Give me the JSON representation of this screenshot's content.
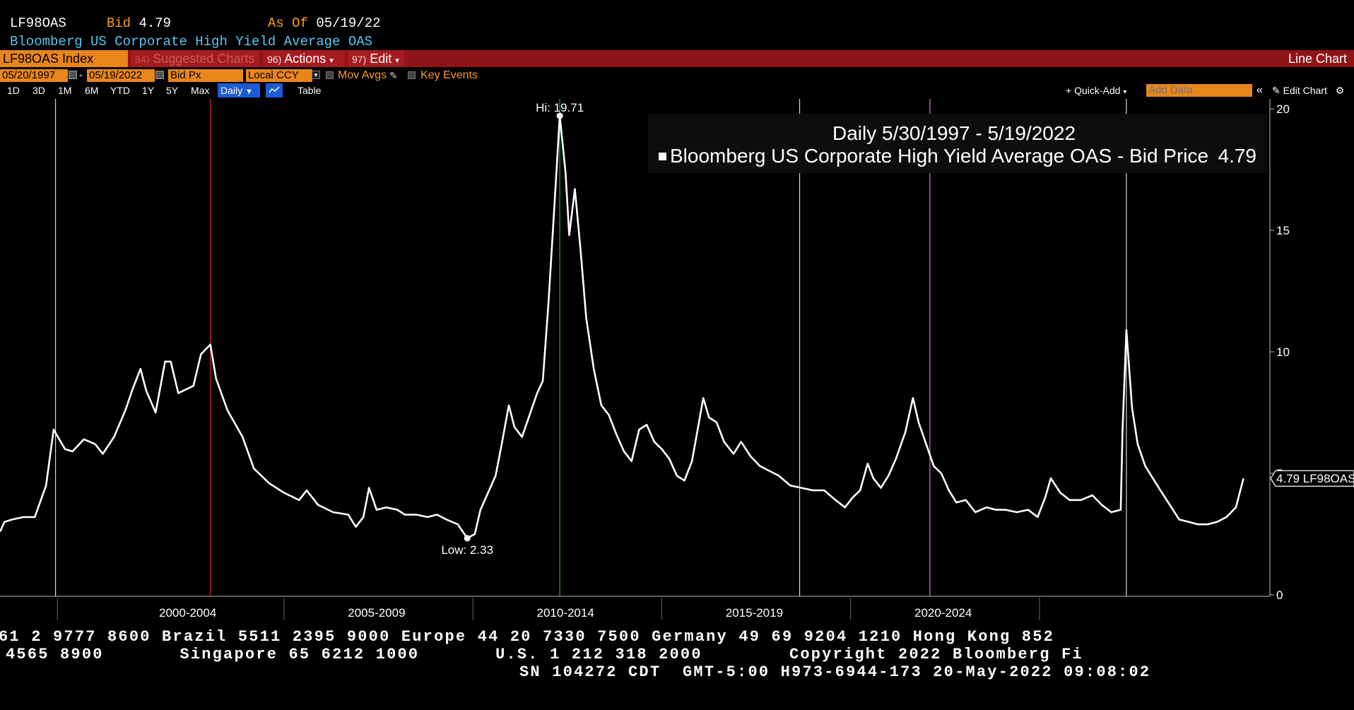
{
  "header": {
    "ticker": "LF98OAS",
    "bid_label": "Bid",
    "bid_value": "4.79",
    "asof_label": "As Of",
    "asof_value": "05/19/22",
    "description": "Bloomberg US Corporate High Yield Average OAS"
  },
  "toolbar": {
    "security": "LF98OAS Index",
    "suggested_num": "94)",
    "suggested": "Suggested Charts",
    "actions_num": "96)",
    "actions": "Actions",
    "edit_num": "97)",
    "edit": "Edit",
    "chart_type": "Line Chart"
  },
  "settings": {
    "start_date": "05/20/1997",
    "end_date": "05/19/2022",
    "field": "Bid Px",
    "currency": "Local CCY",
    "mov_avgs": "Mov Avgs",
    "key_events": "Key Events"
  },
  "ranges": {
    "items": [
      "1D",
      "3D",
      "1M",
      "6M",
      "YTD",
      "1Y",
      "5Y",
      "Max"
    ],
    "frequency": "Daily",
    "table": "Table",
    "quick_add": "+ Quick-Add",
    "add_data_placeholder": "Add Data",
    "collapse": "«",
    "edit_chart": "Edit Chart"
  },
  "colors": {
    "accent_orange": "#e8861b",
    "toolbar_red": "#8f1418",
    "selected_blue": "#1d5bd6",
    "line": "#ffffff",
    "marker_red": "#e02020",
    "marker_green": "#3aa04a",
    "marker_pink": "#c870c8"
  },
  "chart_data": {
    "type": "line",
    "legend_title": "Daily 5/30/1997 - 5/19/2022",
    "series": [
      {
        "name": "Bloomberg US Corporate High Yield Average OAS - Bid Price",
        "last_value": "4.79",
        "last_label": "4.79 LF98OAS",
        "points": [
          [
            1997.38,
            2.6
          ],
          [
            1997.5,
            3.0
          ],
          [
            1997.7,
            3.1
          ],
          [
            1998.0,
            3.2
          ],
          [
            1998.3,
            3.2
          ],
          [
            1998.6,
            4.5
          ],
          [
            1998.8,
            6.8
          ],
          [
            1998.95,
            6.4
          ],
          [
            1999.1,
            6.0
          ],
          [
            1999.3,
            5.9
          ],
          [
            1999.6,
            6.4
          ],
          [
            1999.9,
            6.2
          ],
          [
            2000.1,
            5.8
          ],
          [
            2000.4,
            6.5
          ],
          [
            2000.7,
            7.6
          ],
          [
            2000.9,
            8.5
          ],
          [
            2001.1,
            9.3
          ],
          [
            2001.25,
            8.4
          ],
          [
            2001.5,
            7.5
          ],
          [
            2001.75,
            9.6
          ],
          [
            2001.9,
            9.6
          ],
          [
            2002.1,
            8.3
          ],
          [
            2002.5,
            8.6
          ],
          [
            2002.7,
            9.9
          ],
          [
            2002.95,
            10.3
          ],
          [
            2003.1,
            8.9
          ],
          [
            2003.4,
            7.6
          ],
          [
            2003.8,
            6.5
          ],
          [
            2004.1,
            5.2
          ],
          [
            2004.5,
            4.6
          ],
          [
            2004.9,
            4.2
          ],
          [
            2005.3,
            3.9
          ],
          [
            2005.5,
            4.3
          ],
          [
            2005.8,
            3.7
          ],
          [
            2006.2,
            3.4
          ],
          [
            2006.6,
            3.3
          ],
          [
            2006.8,
            2.8
          ],
          [
            2007.0,
            3.2
          ],
          [
            2007.15,
            4.4
          ],
          [
            2007.35,
            3.5
          ],
          [
            2007.6,
            3.6
          ],
          [
            2007.9,
            3.5
          ],
          [
            2008.1,
            3.3
          ],
          [
            2008.4,
            3.3
          ],
          [
            2008.7,
            3.2
          ],
          [
            2008.95,
            3.3
          ],
          [
            2009.2,
            3.1
          ],
          [
            2009.5,
            2.9
          ],
          [
            2009.75,
            2.33
          ],
          [
            2009.95,
            2.5
          ],
          [
            2010.1,
            3.5
          ],
          [
            2010.3,
            4.2
          ],
          [
            2010.5,
            4.9
          ],
          [
            2010.65,
            6.1
          ],
          [
            2010.85,
            7.8
          ],
          [
            2011.0,
            6.9
          ],
          [
            2011.2,
            6.5
          ],
          [
            2011.4,
            7.4
          ],
          [
            2011.6,
            8.3
          ],
          [
            2011.75,
            8.8
          ],
          [
            2011.9,
            12.0
          ],
          [
            2012.05,
            15.8
          ],
          [
            2012.2,
            19.71
          ],
          [
            2012.35,
            17.4
          ],
          [
            2012.45,
            14.8
          ],
          [
            2012.6,
            16.7
          ],
          [
            2012.75,
            14.2
          ],
          [
            2012.9,
            11.4
          ],
          [
            2013.1,
            9.3
          ],
          [
            2013.3,
            7.8
          ],
          [
            2013.5,
            7.4
          ],
          [
            2013.7,
            6.6
          ],
          [
            2013.9,
            5.9
          ],
          [
            2014.1,
            5.5
          ],
          [
            2014.3,
            6.8
          ],
          [
            2014.5,
            7.0
          ],
          [
            2014.7,
            6.3
          ],
          [
            2014.9,
            6.0
          ],
          [
            2015.1,
            5.6
          ],
          [
            2015.3,
            4.9
          ],
          [
            2015.5,
            4.7
          ],
          [
            2015.7,
            5.5
          ],
          [
            2015.85,
            6.8
          ],
          [
            2016.0,
            8.1
          ],
          [
            2016.15,
            7.3
          ],
          [
            2016.35,
            7.1
          ],
          [
            2016.55,
            6.3
          ],
          [
            2016.8,
            5.8
          ],
          [
            2017.0,
            6.3
          ],
          [
            2017.25,
            5.7
          ],
          [
            2017.5,
            5.3
          ],
          [
            2017.75,
            5.1
          ],
          [
            2018.0,
            4.9
          ],
          [
            2018.3,
            4.5
          ],
          [
            2018.6,
            4.4
          ],
          [
            2018.9,
            4.3
          ],
          [
            2019.2,
            4.3
          ],
          [
            2019.5,
            3.9
          ],
          [
            2019.75,
            3.6
          ],
          [
            2019.95,
            4.0
          ],
          [
            2020.15,
            4.3
          ],
          [
            2020.35,
            5.4
          ],
          [
            2020.5,
            4.8
          ],
          [
            2020.7,
            4.4
          ],
          [
            2020.9,
            4.9
          ],
          [
            2021.1,
            5.6
          ],
          [
            2021.35,
            6.7
          ],
          [
            2021.55,
            8.1
          ],
          [
            2021.7,
            7.1
          ],
          [
            2021.9,
            6.2
          ],
          [
            2022.1,
            5.3
          ],
          [
            2022.3,
            5.0
          ],
          [
            2022.5,
            4.3
          ],
          [
            2022.7,
            3.8
          ],
          [
            2022.95,
            3.9
          ],
          [
            2023.2,
            3.4
          ],
          [
            2023.5,
            3.6
          ],
          [
            2023.75,
            3.5
          ],
          [
            2024.0,
            3.5
          ],
          [
            2024.3,
            3.4
          ],
          [
            2024.6,
            3.5
          ],
          [
            2024.85,
            3.2
          ],
          [
            2025.05,
            4.0
          ],
          [
            2025.2,
            4.8
          ],
          [
            2025.45,
            4.2
          ],
          [
            2025.7,
            3.9
          ],
          [
            2026.0,
            3.9
          ],
          [
            2026.3,
            4.1
          ],
          [
            2026.55,
            3.7
          ],
          [
            2026.8,
            3.4
          ],
          [
            2027.05,
            3.5
          ],
          [
            2027.1,
            6.8
          ],
          [
            2027.2,
            10.9
          ],
          [
            2027.35,
            7.7
          ],
          [
            2027.5,
            6.2
          ],
          [
            2027.7,
            5.3
          ],
          [
            2027.9,
            4.8
          ],
          [
            2028.1,
            4.3
          ],
          [
            2028.35,
            3.7
          ],
          [
            2028.6,
            3.1
          ],
          [
            2028.85,
            3.0
          ],
          [
            2029.1,
            2.9
          ],
          [
            2029.35,
            2.9
          ],
          [
            2029.6,
            3.0
          ],
          [
            2029.85,
            3.2
          ],
          [
            2030.1,
            3.6
          ],
          [
            2030.3,
            4.79
          ]
        ]
      }
    ],
    "hi_label": "Hi: 19.71",
    "low_label": "Low: 2.33",
    "hi": {
      "x": 2012.2,
      "y": 19.71
    },
    "low": {
      "x": 2009.75,
      "y": 2.33
    },
    "ylim": [
      0,
      20
    ],
    "xlim": [
      1997.38,
      2031.0
    ],
    "y_ticks": [
      "0",
      "5",
      "10",
      "15",
      "20"
    ],
    "x_ticks": [
      {
        "label": "2000-2004",
        "x": 2000.0,
        "end": 2005.0
      },
      {
        "label": "2005-2009",
        "x": 2005.0,
        "end": 2010.0
      },
      {
        "label": "2010-2014",
        "x": 2010.0,
        "end": 2015.0
      },
      {
        "label": "2015-2019",
        "x": 2015.0,
        "end": 2020.0
      },
      {
        "label": "2020-2024",
        "x": 2020.0,
        "end": 2025.0
      }
    ],
    "event_lines": [
      {
        "x": 1998.85,
        "color": "white"
      },
      {
        "x": 2002.95,
        "color": "red"
      },
      {
        "x": 2012.2,
        "color": "green"
      },
      {
        "x": 2018.55,
        "color": "white"
      },
      {
        "x": 2022.0,
        "color": "pink"
      },
      {
        "x": 2027.2,
        "color": "white"
      }
    ]
  },
  "footer": {
    "line1": "61 2 9777 8600 Brazil 5511 2395 9000 Europe 44 20 7330 7500 Germany 49 69 9204 1210 Hong Kong 852",
    "line2": "4565 8900       Singapore 65 6212 1000       U.S. 1 212 318 2000        Copyright 2022 Bloomberg Fi",
    "line3": "SN 104272 CDT  GMT-5:00 H973-6944-173 20-May-2022 09:08:02"
  }
}
